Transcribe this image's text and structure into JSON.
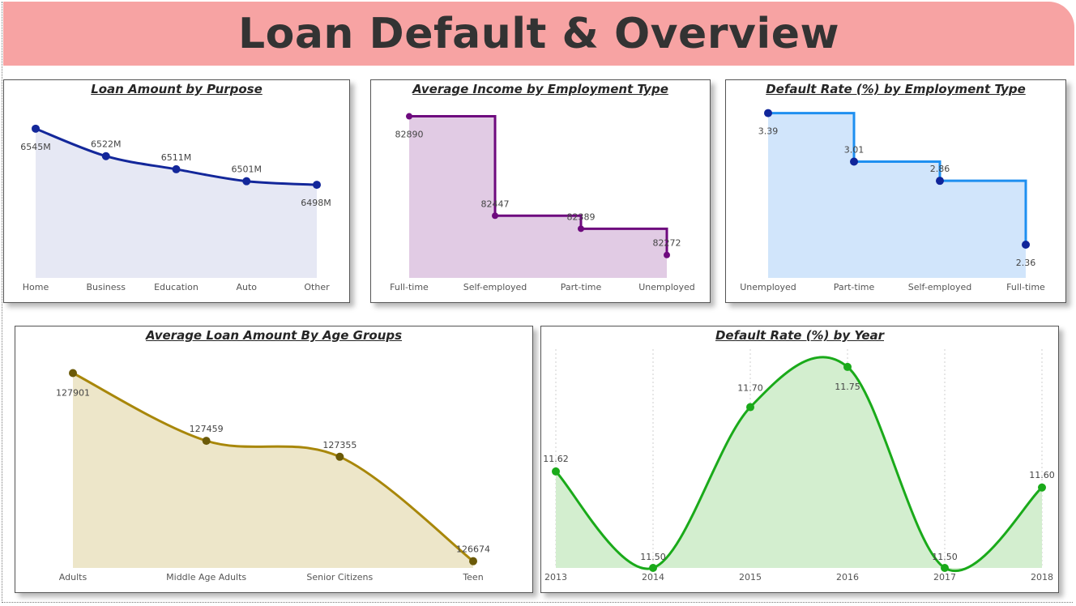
{
  "header": {
    "title": "Loan Default & Overview"
  },
  "chart_data": [
    {
      "id": "loan-purpose",
      "type": "area",
      "title": "Loan Amount by Purpose",
      "categories": [
        "Home",
        "Business",
        "Education",
        "Auto",
        "Other"
      ],
      "values": [
        6545,
        6522,
        6511,
        6501,
        6498
      ],
      "data_labels": [
        "6545M",
        "6522M",
        "6511M",
        "6501M",
        "6498M"
      ],
      "ylim": [
        6420,
        6551
      ],
      "color": "#13279a",
      "fill": "#e6e8f4",
      "curve": "smooth",
      "grid": false
    },
    {
      "id": "income-employment",
      "type": "area",
      "title": "Average Income by Employment Type",
      "categories": [
        "Full-time",
        "Self-employed",
        "Part-time",
        "Unemployed"
      ],
      "values": [
        82890,
        82447,
        82389,
        82272
      ],
      "data_labels": [
        "82890",
        "82447",
        "82389",
        "82272"
      ],
      "ylim": [
        82170,
        82910
      ],
      "color": "#6e0a7e",
      "fill": "#e1cbe4",
      "curve": "step",
      "grid": false
    },
    {
      "id": "default-employment",
      "type": "area",
      "title": "Default Rate (%) by Employment Type",
      "categories": [
        "Unemployed",
        "Part-time",
        "Self-employed",
        "Full-time"
      ],
      "values": [
        3.39,
        3.01,
        2.86,
        2.36
      ],
      "data_labels": [
        "3.39",
        "3.01",
        "2.86",
        "2.36"
      ],
      "ylim": [
        2.1,
        3.4
      ],
      "color": "#1e8ff0",
      "marker": "#10259a",
      "fill": "#d1e5fb",
      "curve": "step",
      "grid": false
    },
    {
      "id": "loan-age",
      "type": "area",
      "title": "Average Loan Amount By Age Groups",
      "categories": [
        "Adults",
        "Middle Age Adults",
        "Senior Citizens",
        "Teen"
      ],
      "values": [
        127901,
        127459,
        127355,
        126674
      ],
      "data_labels": [
        "127901",
        "127459",
        "127355",
        "126674"
      ],
      "ylim": [
        126630,
        127930
      ],
      "color": "#a8870a",
      "marker": "#6b5a08",
      "fill": "#ede6c9",
      "curve": "smooth",
      "grid": false
    },
    {
      "id": "default-year",
      "type": "area",
      "title": "Default Rate (%) by Year",
      "categories": [
        "2013",
        "2014",
        "2015",
        "2016",
        "2017",
        "2018"
      ],
      "values": [
        11.62,
        11.5,
        11.7,
        11.75,
        11.5,
        11.6
      ],
      "data_labels": [
        "11.62",
        "11.50",
        "11.70",
        "11.75",
        "11.50",
        "11.60"
      ],
      "ylim": [
        11.5,
        11.76
      ],
      "color": "#1aaa1a",
      "fill": "#d3eecf",
      "curve": "smooth",
      "grid": true
    }
  ]
}
